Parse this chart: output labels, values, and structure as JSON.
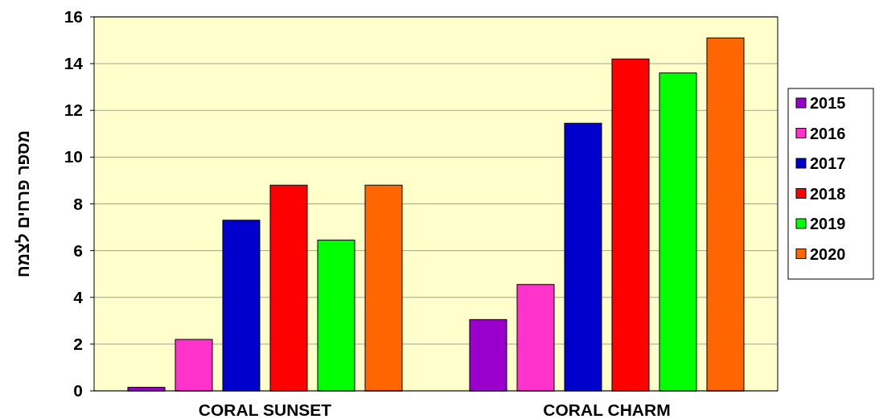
{
  "chart_data": {
    "type": "bar",
    "ylabel": "מספר פרחים לצמח",
    "categories": [
      "CORAL SUNSET",
      "CORAL CHARM"
    ],
    "series": [
      {
        "name": "2015",
        "color": "#9900cc",
        "values": [
          0.15,
          3.05
        ]
      },
      {
        "name": "2016",
        "color": "#ff33cc",
        "values": [
          2.2,
          4.55
        ]
      },
      {
        "name": "2017",
        "color": "#0000cc",
        "values": [
          7.3,
          11.45
        ]
      },
      {
        "name": "2018",
        "color": "#ff0000",
        "values": [
          8.8,
          14.2
        ]
      },
      {
        "name": "2019",
        "color": "#00ff00",
        "values": [
          6.45,
          13.6
        ]
      },
      {
        "name": "2020",
        "color": "#ff6600",
        "values": [
          8.8,
          15.1
        ]
      }
    ],
    "ylim": [
      0,
      16
    ],
    "yticks": [
      0,
      2,
      4,
      6,
      8,
      10,
      12,
      14,
      16
    ],
    "grid": "y",
    "legend": "right"
  }
}
